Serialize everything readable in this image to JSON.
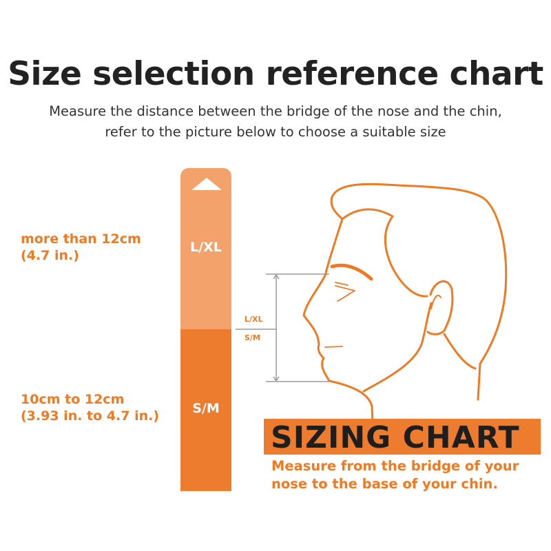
{
  "header": {
    "title": "Size selection reference chart",
    "subtitle_line1": "Measure the distance between the bridge of the nose and the chin,",
    "subtitle_line2": "refer to the picture below to choose a suitable size"
  },
  "sizes": [
    {
      "label": "L/XL",
      "range_line1": "more than 12cm",
      "range_line2": "(4.7 in.)",
      "color": "#f4a26c"
    },
    {
      "label": "S/M",
      "range_line1": "10cm to 12cm",
      "range_line2": "(3.93 in. to 4.7 in.)",
      "color": "#ee7c2e"
    }
  ],
  "diagram": {
    "upper_label": "L/XL",
    "lower_label": "S/M",
    "line_color": "#ef7a22"
  },
  "sizing_chart": {
    "title": "SIZING CHART",
    "line1": "Measure from the bridge of your",
    "line2": "nose to the base of your chin."
  }
}
